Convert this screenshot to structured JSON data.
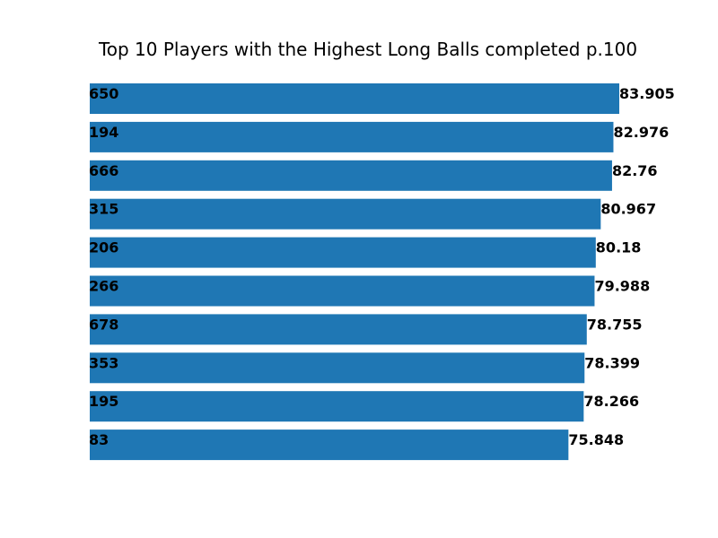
{
  "chart_data": {
    "type": "bar",
    "orientation": "horizontal",
    "title": "Top 10 Players with the Highest Long Balls completed p.100",
    "xlabel": "",
    "ylabel": "",
    "xlim": [
      0,
      83.905
    ],
    "grid": false,
    "axes_visible": false,
    "bar_color": "#1f77b4",
    "categories": [
      "650",
      "194",
      "666",
      "315",
      "206",
      "266",
      "678",
      "353",
      "195",
      "83"
    ],
    "values": [
      83.905,
      82.976,
      82.76,
      80.967,
      80.18,
      79.988,
      78.755,
      78.399,
      78.266,
      75.848
    ],
    "value_labels": [
      "83.905",
      "82.976",
      "82.76",
      "80.967",
      "80.18",
      "79.988",
      "78.755",
      "78.399",
      "78.266",
      "75.848"
    ]
  }
}
